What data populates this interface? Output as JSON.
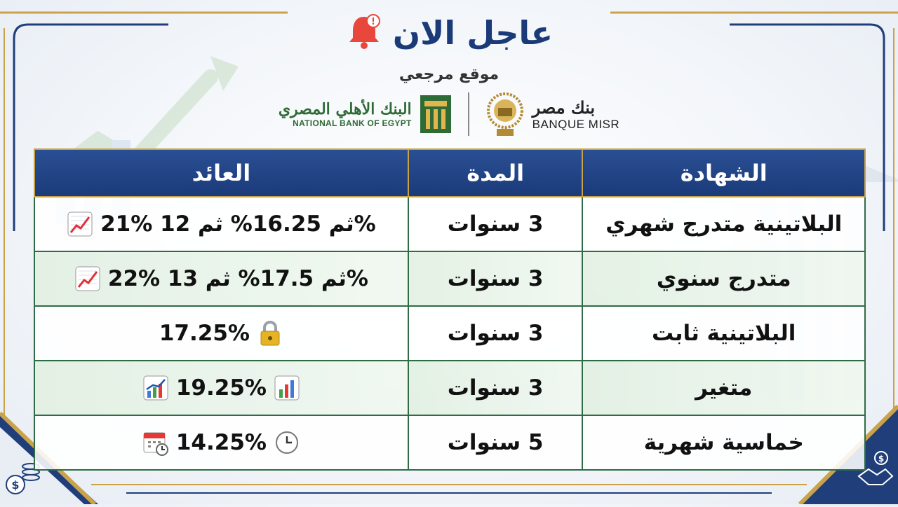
{
  "header": {
    "title": "عاجل الان",
    "subtitle": "موقع مرجعي",
    "bell_icon": "alarm-bell-icon"
  },
  "logos": {
    "nbe": {
      "arabic": "البنك الأهلي المصري",
      "english": "NATIONAL BANK OF EGYPT",
      "color": "#2f6b36"
    },
    "banque_misr": {
      "arabic": "بنك مصر",
      "english": "BANQUE MISR"
    }
  },
  "table": {
    "headers": {
      "certificate": "الشهادة",
      "duration": "المدة",
      "return": "العائد"
    },
    "rows": [
      {
        "certificate": "البلاتينية متدرج شهري",
        "duration": "3 سنوات",
        "return": "21% ثم 16.25% ثم 12%",
        "icon": "trending-up-chart-icon"
      },
      {
        "certificate": "متدرج سنوي",
        "duration": "3 سنوات",
        "return": "22% ثم 17.5% ثم 13%",
        "icon": "trending-up-chart-icon"
      },
      {
        "certificate": "البلاتينية ثابت",
        "duration": "3 سنوات",
        "return": "17.25%",
        "icon": "lock-icon"
      },
      {
        "certificate": "متغير",
        "duration": "3 سنوات",
        "return": "19.25%",
        "icon": "bar-chart-icon"
      },
      {
        "certificate": "خماسية شهرية",
        "duration": "5 سنوات",
        "return": "14.25%",
        "icon": "clock-icon"
      }
    ]
  },
  "colors": {
    "navy": "#1a3a78",
    "gold": "#c9a24a",
    "green": "#2f6b45"
  }
}
